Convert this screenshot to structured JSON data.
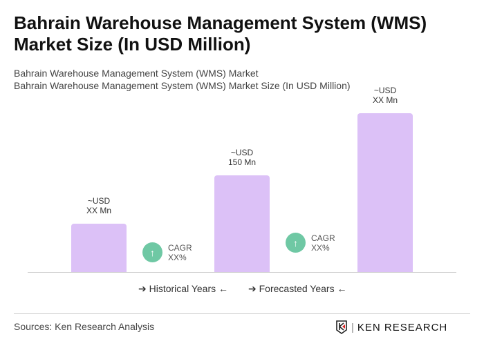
{
  "title": "Bahrain Warehouse Management System (WMS) Market Size (In USD Million)",
  "subtitle1": "Bahrain Warehouse Management System (WMS) Market",
  "subtitle2": "Bahrain Warehouse Management System (WMS) Market Size (In USD Million)",
  "chart_data": {
    "type": "bar",
    "categories": [
      "",
      "",
      ""
    ],
    "values": [
      null,
      150,
      null
    ],
    "data_labels": [
      [
        "~USD",
        "XX Mn"
      ],
      [
        "~USD",
        "150 Mn"
      ],
      [
        "~USD",
        "XX Mn"
      ]
    ],
    "bar_color": "#dcc1f7",
    "cagr": [
      {
        "label": "CAGR",
        "value": "XX%"
      },
      {
        "label": "CAGR",
        "value": "XX%"
      }
    ],
    "cagr_color": "#6fc8a4",
    "legend": [
      "Historical Years",
      "Forecasted Years"
    ],
    "grid": false
  },
  "source": "Sources: Ken Research Analysis",
  "logo_text": "KEN RESEARCH"
}
